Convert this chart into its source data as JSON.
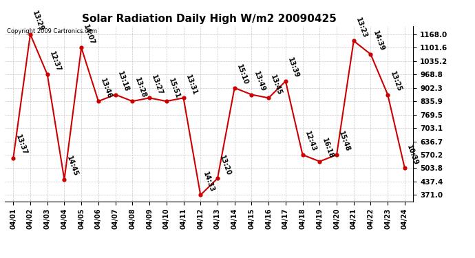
{
  "title": "Solar Radiation Daily High W/m2 20090425",
  "copyright": "Copyright 2009 Cartronics.com",
  "dates": [
    "04/01",
    "04/02",
    "04/03",
    "04/04",
    "04/05",
    "04/06",
    "04/07",
    "04/08",
    "04/09",
    "04/10",
    "04/11",
    "04/12",
    "04/13",
    "04/14",
    "04/15",
    "04/16",
    "04/17",
    "04/18",
    "04/19",
    "04/20",
    "04/21",
    "04/22",
    "04/23",
    "04/24"
  ],
  "values": [
    554.0,
    1168.0,
    968.8,
    448.0,
    1101.6,
    835.9,
    868.8,
    835.9,
    852.3,
    835.9,
    852.3,
    371.0,
    453.0,
    902.3,
    868.8,
    852.3,
    935.2,
    570.2,
    537.4,
    570.2,
    1135.2,
    1068.8,
    868.8,
    503.8
  ],
  "labels": [
    "13:37",
    "13:29",
    "12:37",
    "14:45",
    "14:07",
    "13:46",
    "13:18",
    "13:28",
    "13:27",
    "15:51",
    "13:31",
    "14:33",
    "13:20",
    "15:10",
    "13:49",
    "13:45",
    "13:39",
    "12:43",
    "16:18",
    "15:48",
    "13:23",
    "14:39",
    "13:25",
    "10:39"
  ],
  "line_color": "#cc0000",
  "marker_color": "#cc0000",
  "bg_color": "#ffffff",
  "grid_color": "#c8c8c8",
  "title_fontsize": 11,
  "label_fontsize": 7,
  "yticks": [
    371.0,
    437.4,
    503.8,
    570.2,
    636.7,
    703.1,
    769.5,
    835.9,
    902.3,
    968.8,
    1035.2,
    1101.6,
    1168.0
  ],
  "ylim": [
    340.0,
    1210.0
  ]
}
